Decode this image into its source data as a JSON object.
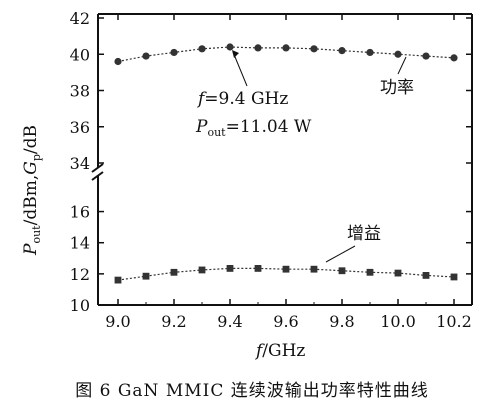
{
  "caption": "图 6   GaN MMIC 连续波输出功率特性曲线",
  "chart_data": {
    "type": "scatter",
    "title": "",
    "xlabel_var": "f",
    "xlabel_unit": "/GHz",
    "ylabel_p": "P",
    "ylabel_out": "out",
    "ylabel_mid": "/dBm,",
    "ylabel_g": "G",
    "ylabel_sub": "p",
    "ylabel_end": "/dB",
    "x_ticks": [
      "9.0",
      "9.2",
      "9.4",
      "9.6",
      "9.8",
      "10.0",
      "10.2"
    ],
    "y_ticks_upper": [
      "34",
      "36",
      "38",
      "40",
      "42"
    ],
    "y_ticks_lower": [
      "10",
      "12",
      "14",
      "16"
    ],
    "xlim": [
      8.9,
      10.25
    ],
    "ylim_upper": [
      34,
      42
    ],
    "ylim_lower": [
      10,
      17
    ],
    "axis_break": true,
    "series": [
      {
        "name": "功率",
        "marker": "circle",
        "x": [
          9.0,
          9.1,
          9.2,
          9.3,
          9.4,
          9.5,
          9.6,
          9.7,
          9.8,
          9.9,
          10.0,
          10.1,
          10.2
        ],
        "y": [
          39.6,
          39.9,
          40.1,
          40.3,
          40.4,
          40.35,
          40.35,
          40.3,
          40.2,
          40.1,
          40.0,
          39.9,
          39.8
        ]
      },
      {
        "name": "增益",
        "marker": "square",
        "x": [
          9.0,
          9.1,
          9.2,
          9.3,
          9.4,
          9.5,
          9.6,
          9.7,
          9.8,
          9.9,
          10.0,
          10.1,
          10.2
        ],
        "y": [
          11.6,
          11.85,
          12.1,
          12.25,
          12.35,
          12.35,
          12.3,
          12.3,
          12.2,
          12.1,
          12.05,
          11.9,
          11.8
        ]
      }
    ],
    "annotation": {
      "line1_var": "f",
      "line1_text": "=9.4 GHz",
      "line2_var": "P",
      "line2_sub": "out",
      "line2_text": "=11.04 W",
      "point_x": 9.4,
      "point_y": 40.4
    }
  }
}
